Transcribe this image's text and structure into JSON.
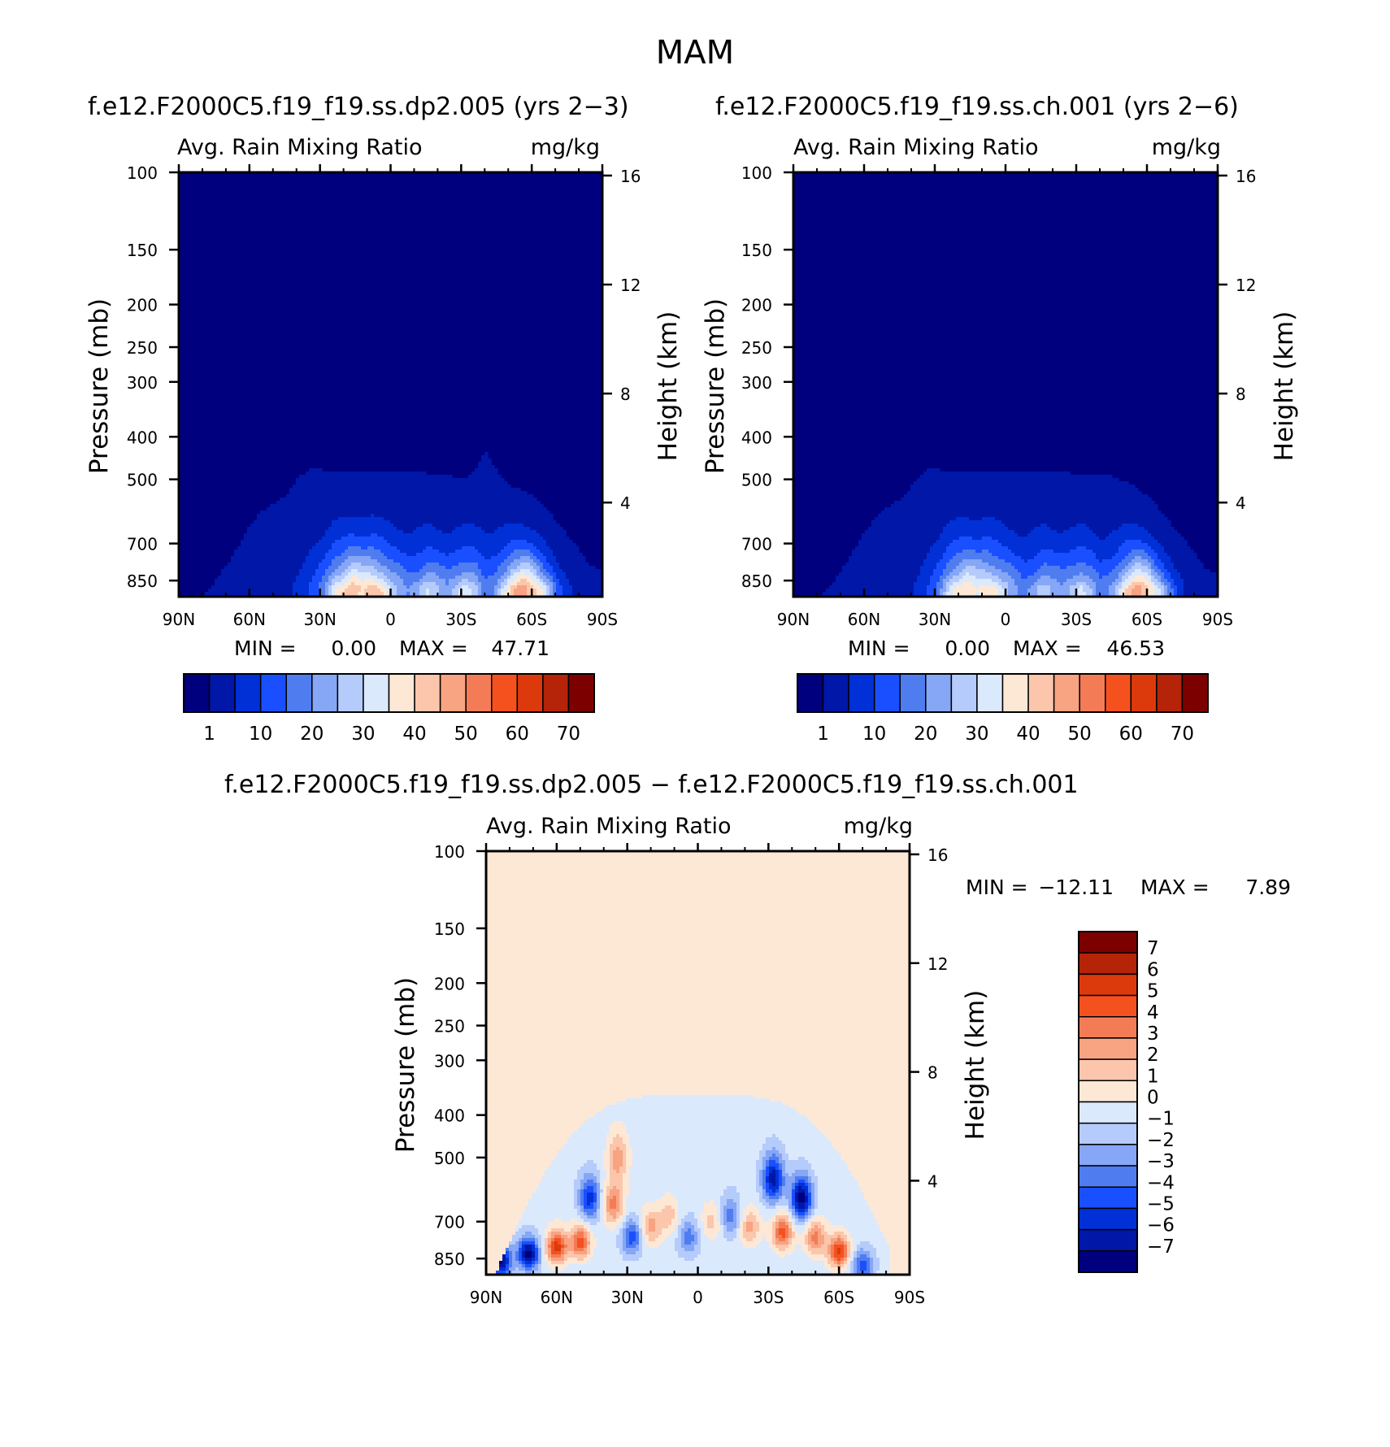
{
  "figure_title": "MAM",
  "colors": {
    "abs_scale": [
      "#00007f",
      "#0017a8",
      "#0030d6",
      "#1a4fff",
      "#4f7df0",
      "#86a6f6",
      "#b5cbfb",
      "#dbe9fc",
      "#fde8d6",
      "#fbc6ab",
      "#f8a382",
      "#f37c57",
      "#f4511e",
      "#dc3a0c",
      "#b52308",
      "#7d0000"
    ],
    "diff_scale": [
      "#00007f",
      "#0017a8",
      "#0030d6",
      "#1a4fff",
      "#4f7df0",
      "#86a6f6",
      "#b5cbfb",
      "#dbe9fc",
      "#fde8d6",
      "#fbc6ab",
      "#f8a382",
      "#f37c57",
      "#f4511e",
      "#dc3a0c",
      "#b52308",
      "#7d0000"
    ]
  },
  "chart_data": [
    {
      "type": "heatmap",
      "title": "f.e12.F2000C5.f19_f19.ss.dp2.005 (yrs 2−3)",
      "subtitle_left": "Avg. Rain Mixing Ratio",
      "subtitle_right": "mg/kg",
      "xlabel": "",
      "ylabel": "Pressure (mb)",
      "ylabel_right": "Height (km)",
      "x_ticks": [
        "90N",
        "60N",
        "30N",
        "0",
        "30S",
        "60S",
        "90S"
      ],
      "y_ticks": [
        "100",
        "150",
        "200",
        "250",
        "300",
        "400",
        "500",
        "700",
        "850"
      ],
      "y_right_ticks": [
        "16",
        "12",
        "8",
        "4"
      ],
      "ylim": [
        100,
        925
      ],
      "min_text": "MIN =",
      "min_value": "0.00",
      "max_text": "MAX =",
      "max_value": "47.71",
      "colorbar_labels": [
        "1",
        "10",
        "20",
        "30",
        "40",
        "50",
        "60",
        "70"
      ],
      "profile": {
        "lat": [
          -88,
          -84,
          -80,
          -76,
          -72,
          -68,
          -64,
          -60,
          -56,
          -52,
          -48,
          -44,
          -40,
          -36,
          -32,
          -28,
          -24,
          -20,
          -16,
          -12,
          -8,
          -4,
          0,
          4,
          8,
          12,
          16,
          20,
          24,
          28,
          32,
          36,
          40,
          44,
          48,
          52,
          56,
          60,
          64,
          68,
          72,
          76,
          80,
          84,
          88
        ],
        "top_p": [
          800,
          780,
          720,
          680,
          640,
          600,
          570,
          540,
          530,
          520,
          500,
          470,
          430,
          475,
          500,
          495,
          490,
          490,
          485,
          480,
          480,
          480,
          480,
          480,
          480,
          480,
          480,
          480,
          480,
          480,
          470,
          480,
          500,
          540,
          560,
          580,
          600,
          640,
          700,
          760,
          810,
          880,
          925,
          925,
          925
        ],
        "core": [
          0,
          0,
          0,
          5,
          10,
          22,
          32,
          42,
          47,
          40,
          28,
          18,
          15,
          25,
          30,
          25,
          20,
          24,
          28,
          22,
          18,
          22,
          28,
          36,
          40,
          38,
          42,
          36,
          30,
          18,
          12,
          8,
          5,
          2,
          0,
          0,
          0,
          0,
          0,
          0,
          0,
          0,
          0,
          0,
          0
        ]
      }
    },
    {
      "type": "heatmap",
      "title": "f.e12.F2000C5.f19_f19.ss.ch.001 (yrs 2−6)",
      "subtitle_left": "Avg. Rain Mixing Ratio",
      "subtitle_right": "mg/kg",
      "xlabel": "",
      "ylabel": "Pressure (mb)",
      "ylabel_right": "Height (km)",
      "x_ticks": [
        "90N",
        "60N",
        "30N",
        "0",
        "30S",
        "60S",
        "90S"
      ],
      "y_ticks": [
        "100",
        "150",
        "200",
        "250",
        "300",
        "400",
        "500",
        "700",
        "850"
      ],
      "y_right_ticks": [
        "16",
        "12",
        "8",
        "4"
      ],
      "ylim": [
        100,
        925
      ],
      "min_text": "MIN =",
      "min_value": "0.00",
      "max_text": "MAX =",
      "max_value": "46.53",
      "colorbar_labels": [
        "1",
        "10",
        "20",
        "30",
        "40",
        "50",
        "60",
        "70"
      ],
      "profile": {
        "lat": [
          -88,
          -84,
          -80,
          -76,
          -72,
          -68,
          -64,
          -60,
          -56,
          -52,
          -48,
          -44,
          -40,
          -36,
          -32,
          -28,
          -24,
          -20,
          -16,
          -12,
          -8,
          -4,
          0,
          4,
          8,
          12,
          16,
          20,
          24,
          28,
          32,
          36,
          40,
          44,
          48,
          52,
          56,
          60,
          64,
          68,
          72,
          76,
          80,
          84,
          88
        ],
        "top_p": [
          820,
          790,
          730,
          690,
          650,
          610,
          575,
          545,
          525,
          510,
          500,
          490,
          490,
          490,
          485,
          485,
          480,
          480,
          480,
          480,
          480,
          480,
          480,
          480,
          480,
          480,
          480,
          480,
          480,
          475,
          470,
          490,
          520,
          550,
          570,
          590,
          620,
          660,
          720,
          780,
          840,
          900,
          925,
          925,
          925
        ],
        "core": [
          0,
          0,
          0,
          4,
          10,
          20,
          30,
          40,
          46,
          38,
          26,
          18,
          16,
          24,
          28,
          24,
          20,
          22,
          26,
          20,
          16,
          20,
          26,
          32,
          36,
          34,
          38,
          34,
          28,
          16,
          10,
          6,
          3,
          1,
          0,
          0,
          0,
          0,
          0,
          0,
          0,
          0,
          0,
          0,
          0
        ]
      }
    },
    {
      "type": "heatmap",
      "title": "f.e12.F2000C5.f19_f19.ss.dp2.005 − f.e12.F2000C5.f19_f19.ss.ch.001",
      "subtitle_left": "Avg. Rain Mixing Ratio",
      "subtitle_right": "mg/kg",
      "xlabel": "",
      "ylabel": "Pressure (mb)",
      "ylabel_right": "Height (km)",
      "x_ticks": [
        "90N",
        "60N",
        "30N",
        "0",
        "30S",
        "60S",
        "90S"
      ],
      "y_ticks": [
        "100",
        "150",
        "200",
        "250",
        "300",
        "400",
        "500",
        "700",
        "850"
      ],
      "y_right_ticks": [
        "16",
        "12",
        "8",
        "4"
      ],
      "ylim": [
        100,
        925
      ],
      "min_text": "MIN =",
      "min_value": "−12.11",
      "max_text": "MAX =",
      "max_value": "7.89",
      "colorbar_labels": [
        "7",
        "6",
        "5",
        "4",
        "3",
        "2",
        "1",
        "0",
        "−1",
        "−2",
        "−3",
        "−4",
        "−5",
        "−6",
        "−7"
      ],
      "diff_top_p": 360,
      "diff_blobs": [
        {
          "lat": 84,
          "p": 860,
          "value": -7
        },
        {
          "lat": 72,
          "p": 830,
          "value": -7
        },
        {
          "lat": 60,
          "p": 800,
          "value": 6
        },
        {
          "lat": 50,
          "p": 780,
          "value": 5
        },
        {
          "lat": 46,
          "p": 620,
          "value": -5
        },
        {
          "lat": 36,
          "p": 640,
          "value": 4
        },
        {
          "lat": 34,
          "p": 500,
          "value": 3
        },
        {
          "lat": 28,
          "p": 760,
          "value": -4
        },
        {
          "lat": 20,
          "p": 720,
          "value": 3
        },
        {
          "lat": 12,
          "p": 680,
          "value": 2
        },
        {
          "lat": 4,
          "p": 760,
          "value": -3
        },
        {
          "lat": -6,
          "p": 700,
          "value": 2
        },
        {
          "lat": -14,
          "p": 680,
          "value": -3
        },
        {
          "lat": -22,
          "p": 720,
          "value": 3
        },
        {
          "lat": -32,
          "p": 560,
          "value": -6
        },
        {
          "lat": -36,
          "p": 740,
          "value": 5
        },
        {
          "lat": -44,
          "p": 620,
          "value": -7
        },
        {
          "lat": -50,
          "p": 760,
          "value": 4
        },
        {
          "lat": -60,
          "p": 820,
          "value": 6
        },
        {
          "lat": -70,
          "p": 880,
          "value": -4
        }
      ]
    }
  ]
}
